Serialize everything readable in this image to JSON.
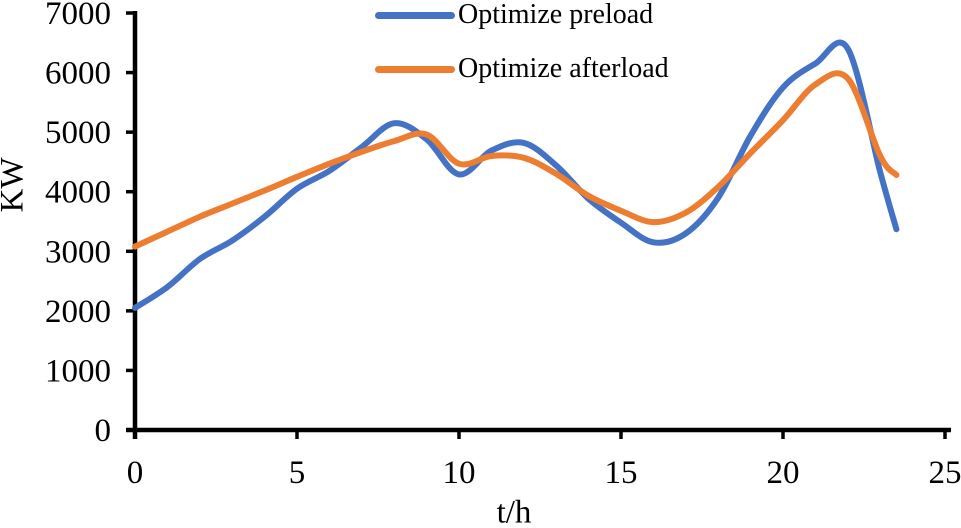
{
  "chart_data": {
    "type": "line",
    "title": "",
    "xlabel": "t/h",
    "ylabel": "KW",
    "xlim": [
      0,
      25
    ],
    "ylim": [
      0,
      7000
    ],
    "xticks": [
      0,
      5,
      10,
      15,
      20,
      25
    ],
    "yticks": [
      0,
      1000,
      2000,
      3000,
      4000,
      5000,
      6000,
      7000
    ],
    "grid": false,
    "legend_position": "top-center",
    "axis_color": "#000000",
    "background": "#ffffff",
    "x": [
      0,
      1,
      2,
      3,
      4,
      5,
      6,
      7,
      8,
      9,
      10,
      11,
      12,
      13,
      14,
      15,
      16,
      17,
      18,
      19,
      20,
      21,
      22,
      23,
      23.5
    ],
    "series": [
      {
        "name": "Optimize preload",
        "color": "#4472C4",
        "values": [
          2050,
          2400,
          2870,
          3180,
          3580,
          4050,
          4350,
          4750,
          5150,
          4880,
          4290,
          4690,
          4820,
          4440,
          3880,
          3480,
          3150,
          3300,
          3900,
          4940,
          5750,
          6150,
          6400,
          4330,
          3370
        ]
      },
      {
        "name": "Optimize afterload",
        "color": "#ED7D31",
        "values": [
          3080,
          3330,
          3580,
          3800,
          4020,
          4250,
          4470,
          4670,
          4850,
          4960,
          4470,
          4600,
          4570,
          4300,
          3930,
          3680,
          3490,
          3650,
          4080,
          4650,
          5200,
          5800,
          5900,
          4600,
          4280
        ]
      }
    ]
  }
}
